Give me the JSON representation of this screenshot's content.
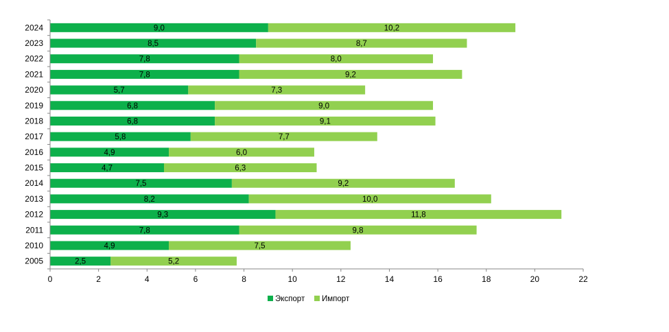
{
  "chart_data": {
    "type": "bar",
    "orientation": "horizontal",
    "stacked": true,
    "title": "",
    "xlabel": "",
    "ylabel": "",
    "categories": [
      "2024",
      "2023",
      "2022",
      "2021",
      "2020",
      "2019",
      "2018",
      "2017",
      "2016",
      "2015",
      "2014",
      "2013",
      "2012",
      "2011",
      "2010",
      "2005"
    ],
    "series": [
      {
        "name": "Экспорт",
        "color": "#0db04b",
        "values": [
          9.0,
          8.5,
          7.8,
          7.8,
          5.7,
          6.8,
          6.8,
          5.8,
          4.9,
          4.7,
          7.5,
          8.2,
          9.3,
          7.8,
          4.9,
          2.5
        ],
        "labels": [
          "9,0",
          "8,5",
          "7,8",
          "7,8",
          "5,7",
          "6,8",
          "6,8",
          "5,8",
          "4,9",
          "4,7",
          "7,5",
          "8,2",
          "9,3",
          "7,8",
          "4,9",
          "2,5"
        ]
      },
      {
        "name": "Импорт",
        "color": "#92d050",
        "values": [
          10.2,
          8.7,
          8.0,
          9.2,
          7.3,
          9.0,
          9.1,
          7.7,
          6.0,
          6.3,
          9.2,
          10.0,
          11.8,
          9.8,
          7.5,
          5.2
        ],
        "labels": [
          "10,2",
          "8,7",
          "8,0",
          "9,2",
          "7,3",
          "9,0",
          "9,1",
          "7,7",
          "6,0",
          "6,3",
          "9,2",
          "10,0",
          "11,8",
          "9,8",
          "7,5",
          "5,2"
        ]
      }
    ],
    "xlim": [
      0,
      22
    ],
    "xticks": [
      "0",
      "2",
      "4",
      "6",
      "8",
      "10",
      "12",
      "14",
      "16",
      "18",
      "20",
      "22"
    ],
    "grid": false,
    "legend_position": "bottom"
  }
}
